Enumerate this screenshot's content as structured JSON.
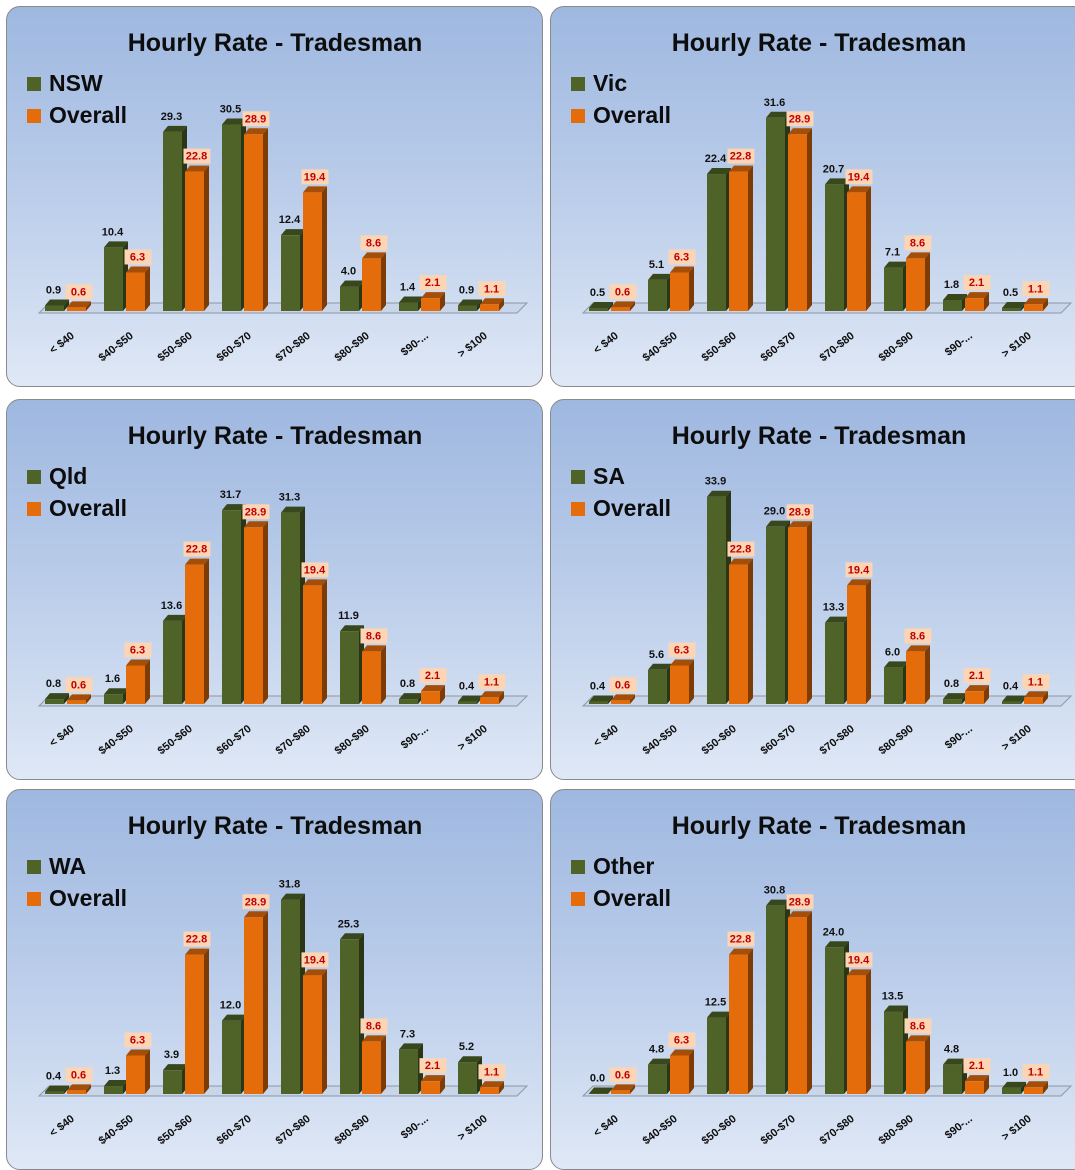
{
  "colors": {
    "series_a": "#4f6228",
    "series_b": "#e46c0a",
    "label_b_bg": "#fcd5b5",
    "label_b_text": "#c00000"
  },
  "chart_data": [
    {
      "type": "bar",
      "title": "Hourly Rate - Tradesman",
      "categories": [
        "< $40",
        "$40-$50",
        "$50-$60",
        "$60-$70",
        "$70-$80",
        "$80-$90",
        "$90-...",
        "> $100"
      ],
      "series": [
        {
          "name": "NSW",
          "values": [
            0.9,
            10.4,
            29.3,
            30.5,
            12.4,
            4.0,
            1.4,
            0.9
          ]
        },
        {
          "name": "Overall",
          "values": [
            0.6,
            6.3,
            22.8,
            28.9,
            19.4,
            8.6,
            2.1,
            1.1
          ]
        }
      ],
      "legend": "top-left",
      "ylim": [
        0,
        35
      ]
    },
    {
      "type": "bar",
      "title": "Hourly Rate - Tradesman",
      "categories": [
        "< $40",
        "$40-$50",
        "$50-$60",
        "$60-$70",
        "$70-$80",
        "$80-$90",
        "$90-...",
        "> $100"
      ],
      "series": [
        {
          "name": "Vic",
          "values": [
            0.5,
            5.1,
            22.4,
            31.6,
            20.7,
            7.1,
            1.8,
            0.5
          ]
        },
        {
          "name": "Overall",
          "values": [
            0.6,
            6.3,
            22.8,
            28.9,
            19.4,
            8.6,
            2.1,
            1.1
          ]
        }
      ],
      "legend": "top-left",
      "ylim": [
        0,
        35
      ]
    },
    {
      "type": "bar",
      "title": "Hourly Rate - Tradesman",
      "categories": [
        "< $40",
        "$40-$50",
        "$50-$60",
        "$60-$70",
        "$70-$80",
        "$80-$90",
        "$90-...",
        "> $100"
      ],
      "series": [
        {
          "name": "Qld",
          "values": [
            0.8,
            1.6,
            13.6,
            31.7,
            31.3,
            11.9,
            0.8,
            0.4
          ]
        },
        {
          "name": "Overall",
          "values": [
            0.6,
            6.3,
            22.8,
            28.9,
            19.4,
            8.6,
            2.1,
            1.1
          ]
        }
      ],
      "legend": "top-left",
      "ylim": [
        0,
        35
      ]
    },
    {
      "type": "bar",
      "title": "Hourly Rate - Tradesman",
      "categories": [
        "< $40",
        "$40-$50",
        "$50-$60",
        "$60-$70",
        "$70-$80",
        "$80-$90",
        "$90-...",
        "> $100"
      ],
      "series": [
        {
          "name": "SA",
          "values": [
            0.4,
            5.6,
            33.9,
            29.0,
            13.3,
            6.0,
            0.8,
            0.4
          ]
        },
        {
          "name": "Overall",
          "values": [
            0.6,
            6.3,
            22.8,
            28.9,
            19.4,
            8.6,
            2.1,
            1.1
          ]
        }
      ],
      "legend": "top-left",
      "ylim": [
        0,
        35
      ]
    },
    {
      "type": "bar",
      "title": "Hourly Rate - Tradesman",
      "categories": [
        "< $40",
        "$40-$50",
        "$50-$60",
        "$60-$70",
        "$70-$80",
        "$80-$90",
        "$90-...",
        "> $100"
      ],
      "series": [
        {
          "name": "WA",
          "values": [
            0.4,
            1.3,
            3.9,
            12.0,
            31.8,
            25.3,
            7.3,
            5.2
          ]
        },
        {
          "name": "Overall",
          "values": [
            0.6,
            6.3,
            22.8,
            28.9,
            19.4,
            8.6,
            2.1,
            1.1
          ]
        }
      ],
      "legend": "top-left",
      "ylim": [
        0,
        35
      ]
    },
    {
      "type": "bar",
      "title": "Hourly Rate - Tradesman",
      "categories": [
        "< $40",
        "$40-$50",
        "$50-$60",
        "$60-$70",
        "$70-$80",
        "$80-$90",
        "$90-...",
        "> $100"
      ],
      "series": [
        {
          "name": "Other",
          "values": [
            0.0,
            4.8,
            12.5,
            30.8,
            24.0,
            13.5,
            4.8,
            1.0
          ]
        },
        {
          "name": "Overall",
          "values": [
            0.6,
            6.3,
            22.8,
            28.9,
            19.4,
            8.6,
            2.1,
            1.1
          ]
        }
      ],
      "legend": "top-left",
      "ylim": [
        0,
        35
      ]
    }
  ]
}
